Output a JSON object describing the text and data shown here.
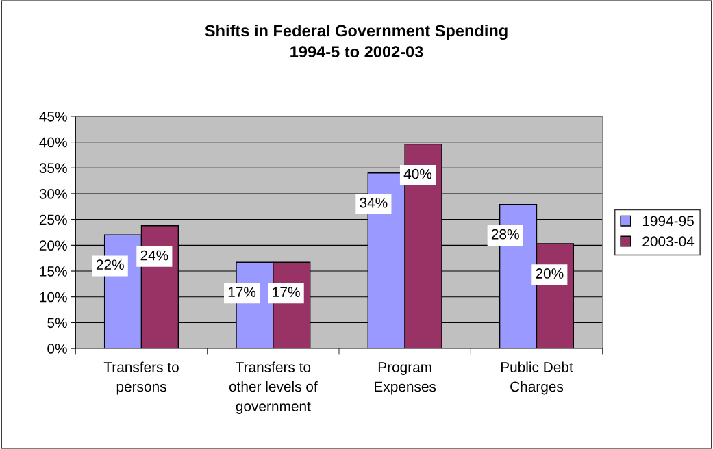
{
  "chart_data": {
    "type": "bar",
    "title": "Shifts in Federal Government Spending\n1994-5 to 2002-03",
    "categories": [
      "Transfers to\npersons",
      "Transfers to\nother levels of\ngovernment",
      "Program\nExpenses",
      "Public Debt\nCharges"
    ],
    "series": [
      {
        "name": "1994-95",
        "color": "#9999ff",
        "values": [
          22.0,
          16.7,
          34.0,
          27.9
        ],
        "value_labels": [
          "22%",
          "17%",
          "34%",
          "28%"
        ]
      },
      {
        "name": "2003-04",
        "color": "#993366",
        "values": [
          23.8,
          16.7,
          39.6,
          20.3
        ],
        "value_labels": [
          "24%",
          "17%",
          "40%",
          "20%"
        ]
      }
    ],
    "ylim": [
      0,
      45
    ],
    "yticks": [
      {
        "value": 0,
        "label": "0%"
      },
      {
        "value": 5,
        "label": "5%"
      },
      {
        "value": 10,
        "label": "10%"
      },
      {
        "value": 15,
        "label": "15%"
      },
      {
        "value": 20,
        "label": "20%"
      },
      {
        "value": 25,
        "label": "25%"
      },
      {
        "value": 30,
        "label": "30%"
      },
      {
        "value": 35,
        "label": "35%"
      },
      {
        "value": 40,
        "label": "40%"
      },
      {
        "value": 45,
        "label": "45%"
      }
    ],
    "grid": "y",
    "legend": "right"
  }
}
